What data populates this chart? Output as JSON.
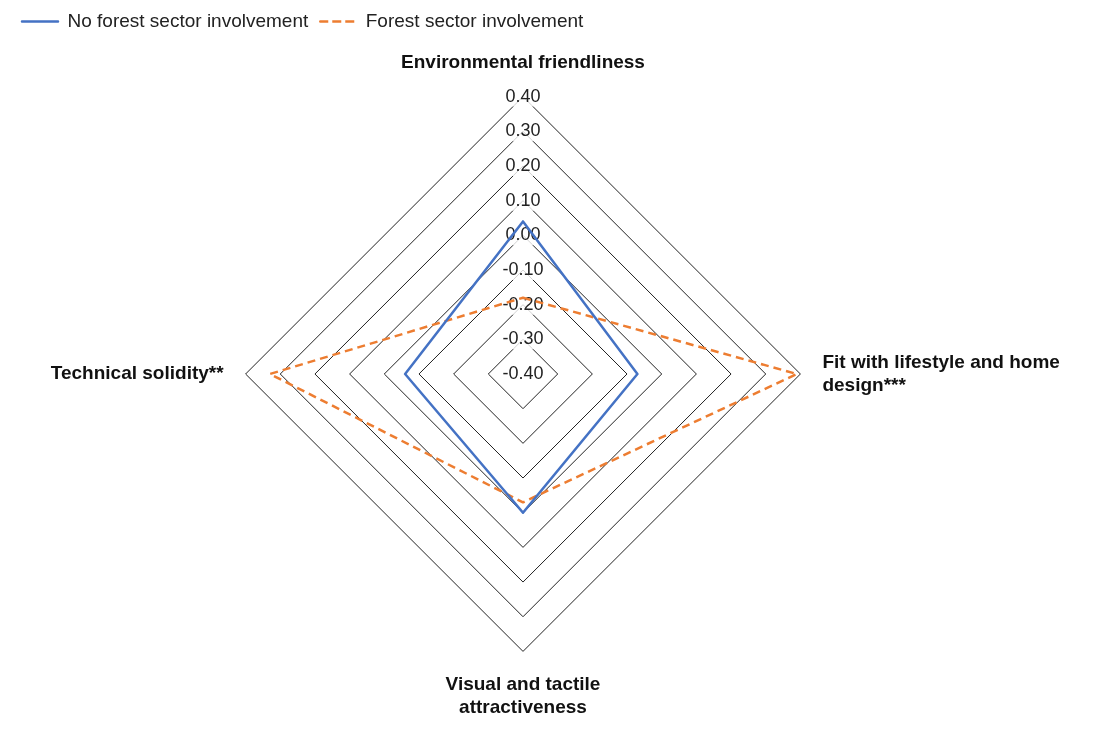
{
  "chart_data": {
    "type": "radar",
    "categories": [
      "Environmental friendliness",
      "Fit with lifestyle and home design***",
      "Visual and tactile attractiveness",
      "Technical solidity**"
    ],
    "series": [
      {
        "name": "No forest sector involvement",
        "color": "#4472c4",
        "line_style": "solid",
        "values": [
          0.04,
          -0.07,
          0.0,
          -0.06
        ]
      },
      {
        "name": "Forest sector involvement",
        "color": "#ed7d31",
        "line_style": "dashed",
        "values": [
          -0.18,
          0.39,
          -0.03,
          0.33
        ]
      }
    ],
    "ylim": [
      -0.4,
      0.4
    ],
    "yticks": [
      {
        "value": -0.4,
        "label": "-0.40"
      },
      {
        "value": -0.3,
        "label": "-0.30"
      },
      {
        "value": -0.2,
        "label": "-0.20"
      },
      {
        "value": -0.1,
        "label": "-0.10"
      },
      {
        "value": 0,
        "label": "0.00"
      },
      {
        "value": 0.1,
        "label": "0.10"
      },
      {
        "value": 0.2,
        "label": "0.20"
      },
      {
        "value": 0.3,
        "label": "0.30"
      },
      {
        "value": 0.4,
        "label": "0.40"
      }
    ],
    "grid": true,
    "legend": "top left",
    "marker": "none"
  }
}
